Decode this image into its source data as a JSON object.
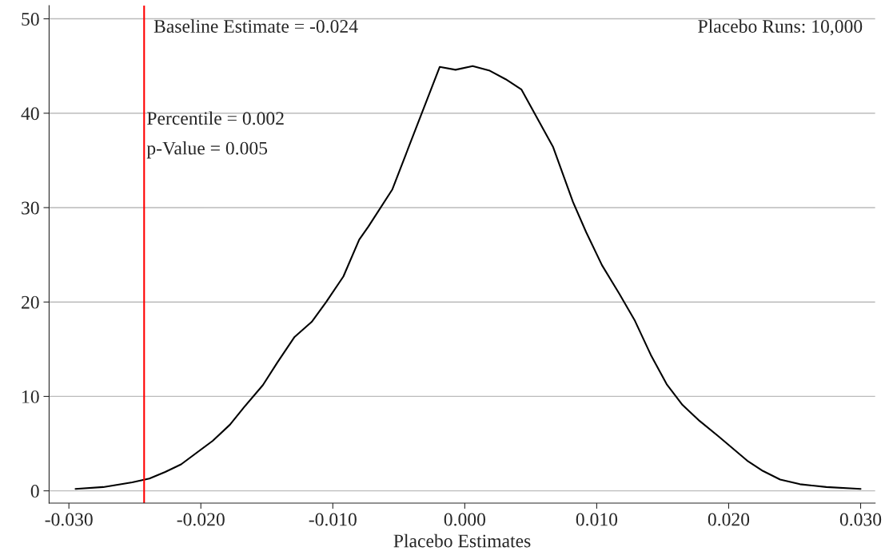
{
  "chart_data": {
    "type": "line",
    "xlabel": "Placebo Estimates",
    "x": [
      -0.0295,
      -0.0274,
      -0.0252,
      -0.0239,
      -0.0227,
      -0.0215,
      -0.0191,
      -0.0178,
      -0.0167,
      -0.0153,
      -0.0142,
      -0.0129,
      -0.0116,
      -0.0105,
      -0.0092,
      -0.008,
      -0.0073,
      -0.0055,
      -0.0019,
      -0.0007,
      0.0006,
      0.0019,
      0.0031,
      0.0043,
      0.0067,
      0.0082,
      0.0092,
      0.0104,
      0.0117,
      0.0129,
      0.0141,
      0.0153,
      0.0165,
      0.0178,
      0.0192,
      0.0214,
      0.0226,
      0.0239,
      0.0254,
      0.0274,
      0.03
    ],
    "series": [
      {
        "color": "#000000",
        "values": [
          0.2,
          0.4,
          0.9,
          1.3,
          2.0,
          2.8,
          5.3,
          7.0,
          8.9,
          11.2,
          13.6,
          16.3,
          17.9,
          20.0,
          22.7,
          26.6,
          28.0,
          31.9,
          44.9,
          44.6,
          45.0,
          44.5,
          43.6,
          42.5,
          36.4,
          30.6,
          27.4,
          23.9,
          20.9,
          18.0,
          14.4,
          11.3,
          9.1,
          7.4,
          5.8,
          3.2,
          2.1,
          1.2,
          0.7,
          0.4,
          0.2
        ]
      }
    ],
    "xlim": [
      -0.0315,
      0.0311
    ],
    "ylim": [
      -1.3,
      51.4
    ],
    "xticks": [
      {
        "value": -0.03,
        "label": "-0.030"
      },
      {
        "value": -0.02,
        "label": "-0.020"
      },
      {
        "value": -0.01,
        "label": "-0.010"
      },
      {
        "value": 0,
        "label": "0.000"
      },
      {
        "value": 0.01,
        "label": "0.010"
      },
      {
        "value": 0.02,
        "label": "0.020"
      },
      {
        "value": 0.03,
        "label": "0.030"
      }
    ],
    "yticks": [
      0,
      10,
      20,
      30,
      40,
      50
    ],
    "grid": "y",
    "ref_lines": [
      {
        "axis": "x",
        "value": -0.0243,
        "label": "Baseline Estimate = -0.024",
        "color": "#ff0000"
      }
    ],
    "annotations": [
      "Placebo Runs: 10,000",
      "Percentile = 0.002",
      "p-Value = 0.005"
    ]
  }
}
